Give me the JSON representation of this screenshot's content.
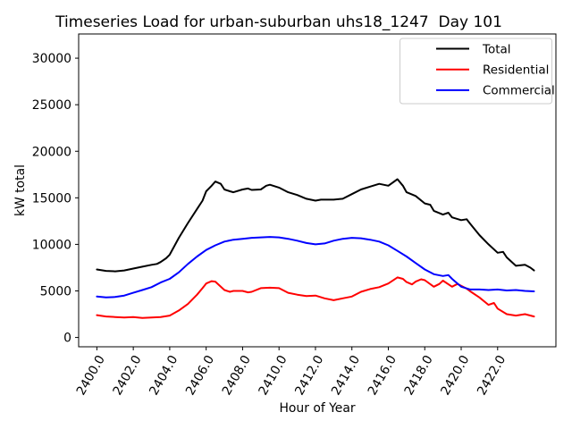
{
  "chart_data": {
    "type": "line",
    "title": "Timeseries Load for urban-suburban uhs18_1247  Day 101",
    "xlabel": "Hour of Year",
    "ylabel": "kW total",
    "xlim": [
      2399.0,
      2425.2
    ],
    "ylim": [
      -1000,
      32600
    ],
    "grid": false,
    "background": "#ffffff",
    "axis_color": "#000000",
    "xticks": [
      2400,
      2402,
      2404,
      2406,
      2408,
      2410,
      2412,
      2414,
      2416,
      2418,
      2420,
      2422
    ],
    "xtick_labels": [
      "2400.0",
      "2402.0",
      "2404.0",
      "2406.0",
      "2408.0",
      "2410.0",
      "2412.0",
      "2414.0",
      "2416.0",
      "2418.0",
      "2420.0",
      "2422.0"
    ],
    "yticks": [
      0,
      5000,
      10000,
      15000,
      20000,
      25000,
      30000
    ],
    "ytick_labels": [
      "0",
      "5000",
      "10000",
      "15000",
      "20000",
      "25000",
      "30000"
    ],
    "legend": {
      "position": "upper right",
      "border_color": "#cccccc",
      "background": "#ffffff",
      "entries": [
        "Total",
        "Residential",
        "Commercial"
      ]
    },
    "series": [
      {
        "name": "Total",
        "color": "#000000",
        "points": [
          [
            2400,
            7300
          ],
          [
            2400.5,
            7150
          ],
          [
            2401,
            7100
          ],
          [
            2401.5,
            7200
          ],
          [
            2402,
            7400
          ],
          [
            2402.5,
            7600
          ],
          [
            2403,
            7800
          ],
          [
            2403.3,
            7900
          ],
          [
            2403.5,
            8100
          ],
          [
            2403.8,
            8500
          ],
          [
            2404,
            8900
          ],
          [
            2404.5,
            10700
          ],
          [
            2405,
            12300
          ],
          [
            2405.5,
            13800
          ],
          [
            2405.8,
            14700
          ],
          [
            2406,
            15700
          ],
          [
            2406.3,
            16300
          ],
          [
            2406.5,
            16750
          ],
          [
            2406.8,
            16500
          ],
          [
            2407,
            15900
          ],
          [
            2407.3,
            15700
          ],
          [
            2407.5,
            15600
          ],
          [
            2408,
            15900
          ],
          [
            2408.3,
            16000
          ],
          [
            2408.5,
            15850
          ],
          [
            2409,
            15900
          ],
          [
            2409.3,
            16300
          ],
          [
            2409.5,
            16400
          ],
          [
            2410,
            16100
          ],
          [
            2410.5,
            15600
          ],
          [
            2411,
            15300
          ],
          [
            2411.5,
            14900
          ],
          [
            2412,
            14700
          ],
          [
            2412.3,
            14800
          ],
          [
            2413,
            14800
          ],
          [
            2413.5,
            14900
          ],
          [
            2414,
            15400
          ],
          [
            2414.5,
            15900
          ],
          [
            2415,
            16200
          ],
          [
            2415.5,
            16500
          ],
          [
            2416,
            16300
          ],
          [
            2416.5,
            17000
          ],
          [
            2416.8,
            16300
          ],
          [
            2417,
            15600
          ],
          [
            2417.5,
            15200
          ],
          [
            2418,
            14400
          ],
          [
            2418.3,
            14250
          ],
          [
            2418.5,
            13600
          ],
          [
            2419,
            13200
          ],
          [
            2419.3,
            13400
          ],
          [
            2419.5,
            12900
          ],
          [
            2420,
            12600
          ],
          [
            2420.3,
            12700
          ],
          [
            2420.5,
            12200
          ],
          [
            2421,
            11000
          ],
          [
            2421.5,
            10000
          ],
          [
            2422,
            9100
          ],
          [
            2422.3,
            9200
          ],
          [
            2422.5,
            8600
          ],
          [
            2423,
            7700
          ],
          [
            2423.5,
            7800
          ],
          [
            2423.8,
            7500
          ],
          [
            2424,
            7200
          ]
        ]
      },
      {
        "name": "Residential",
        "color": "#ff0000",
        "points": [
          [
            2400,
            2400
          ],
          [
            2400.5,
            2250
          ],
          [
            2401,
            2200
          ],
          [
            2401.5,
            2150
          ],
          [
            2402,
            2200
          ],
          [
            2402.5,
            2100
          ],
          [
            2403,
            2150
          ],
          [
            2403.5,
            2200
          ],
          [
            2404,
            2350
          ],
          [
            2404.5,
            2900
          ],
          [
            2405,
            3600
          ],
          [
            2405.5,
            4600
          ],
          [
            2405.8,
            5300
          ],
          [
            2406,
            5800
          ],
          [
            2406.3,
            6050
          ],
          [
            2406.5,
            6000
          ],
          [
            2407,
            5100
          ],
          [
            2407.3,
            4900
          ],
          [
            2407.5,
            5000
          ],
          [
            2408,
            5000
          ],
          [
            2408.3,
            4850
          ],
          [
            2408.5,
            4900
          ],
          [
            2409,
            5300
          ],
          [
            2409.5,
            5350
          ],
          [
            2410,
            5300
          ],
          [
            2410.5,
            4800
          ],
          [
            2411,
            4600
          ],
          [
            2411.5,
            4450
          ],
          [
            2412,
            4500
          ],
          [
            2412.5,
            4200
          ],
          [
            2413,
            4000
          ],
          [
            2413.5,
            4200
          ],
          [
            2414,
            4400
          ],
          [
            2414.5,
            4900
          ],
          [
            2415,
            5200
          ],
          [
            2415.5,
            5400
          ],
          [
            2416,
            5800
          ],
          [
            2416.5,
            6450
          ],
          [
            2416.8,
            6300
          ],
          [
            2417,
            5950
          ],
          [
            2417.3,
            5700
          ],
          [
            2417.5,
            6000
          ],
          [
            2417.8,
            6250
          ],
          [
            2418,
            6150
          ],
          [
            2418.5,
            5450
          ],
          [
            2418.8,
            5750
          ],
          [
            2419,
            6100
          ],
          [
            2419.5,
            5450
          ],
          [
            2419.8,
            5750
          ],
          [
            2420,
            5550
          ],
          [
            2420.3,
            5250
          ],
          [
            2420.5,
            4950
          ],
          [
            2421,
            4300
          ],
          [
            2421.5,
            3500
          ],
          [
            2421.8,
            3700
          ],
          [
            2422,
            3100
          ],
          [
            2422.5,
            2500
          ],
          [
            2423,
            2350
          ],
          [
            2423.5,
            2500
          ],
          [
            2424,
            2250
          ]
        ]
      },
      {
        "name": "Commercial",
        "color": "#0000ff",
        "points": [
          [
            2400,
            4400
          ],
          [
            2400.5,
            4300
          ],
          [
            2401,
            4350
          ],
          [
            2401.5,
            4500
          ],
          [
            2402,
            4800
          ],
          [
            2402.5,
            5100
          ],
          [
            2403,
            5400
          ],
          [
            2403.5,
            5900
          ],
          [
            2404,
            6300
          ],
          [
            2404.5,
            7000
          ],
          [
            2405,
            7900
          ],
          [
            2405.5,
            8700
          ],
          [
            2406,
            9400
          ],
          [
            2406.5,
            9900
          ],
          [
            2407,
            10300
          ],
          [
            2407.5,
            10500
          ],
          [
            2408,
            10600
          ],
          [
            2408.5,
            10700
          ],
          [
            2409,
            10750
          ],
          [
            2409.5,
            10800
          ],
          [
            2410,
            10750
          ],
          [
            2410.5,
            10600
          ],
          [
            2411,
            10400
          ],
          [
            2411.5,
            10150
          ],
          [
            2412,
            10000
          ],
          [
            2412.5,
            10100
          ],
          [
            2413,
            10400
          ],
          [
            2413.5,
            10600
          ],
          [
            2414,
            10700
          ],
          [
            2414.5,
            10650
          ],
          [
            2415,
            10500
          ],
          [
            2415.5,
            10300
          ],
          [
            2416,
            9900
          ],
          [
            2416.5,
            9300
          ],
          [
            2417,
            8700
          ],
          [
            2417.5,
            8000
          ],
          [
            2418,
            7300
          ],
          [
            2418.5,
            6800
          ],
          [
            2419,
            6600
          ],
          [
            2419.3,
            6700
          ],
          [
            2419.5,
            6300
          ],
          [
            2420,
            5450
          ],
          [
            2420.5,
            5150
          ],
          [
            2421,
            5150
          ],
          [
            2421.5,
            5100
          ],
          [
            2422,
            5150
          ],
          [
            2422.5,
            5050
          ],
          [
            2423,
            5100
          ],
          [
            2423.5,
            5000
          ],
          [
            2424,
            4950
          ]
        ]
      }
    ]
  }
}
